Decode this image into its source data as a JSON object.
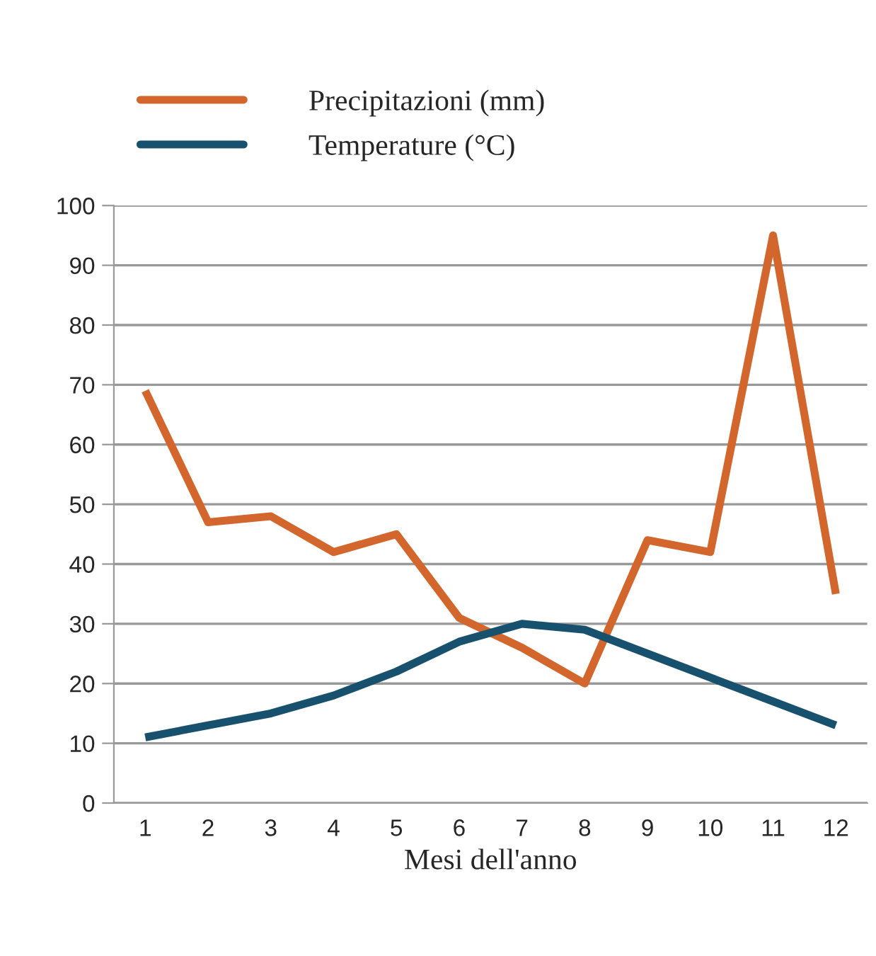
{
  "chart_data": {
    "type": "line",
    "xlabel": "Mesi dell'anno",
    "categories": [
      "1",
      "2",
      "3",
      "4",
      "5",
      "6",
      "7",
      "8",
      "9",
      "10",
      "11",
      "12"
    ],
    "series": [
      {
        "name": "Precipitazioni (mm)",
        "color": "#d2662c",
        "values": [
          69,
          47,
          48,
          42,
          45,
          31,
          26,
          20,
          44,
          42,
          95,
          35
        ]
      },
      {
        "name": "Temperature (°C)",
        "color": "#17516d",
        "values": [
          11,
          13,
          15,
          18,
          22,
          27,
          30,
          29,
          25,
          21,
          17,
          13
        ]
      }
    ],
    "ylim": [
      0,
      100
    ],
    "yticks": [
      0,
      10,
      20,
      30,
      40,
      50,
      60,
      70,
      80,
      90,
      100
    ],
    "grid": "y",
    "legend": "top left",
    "marker": "none",
    "line_style": "solid"
  }
}
